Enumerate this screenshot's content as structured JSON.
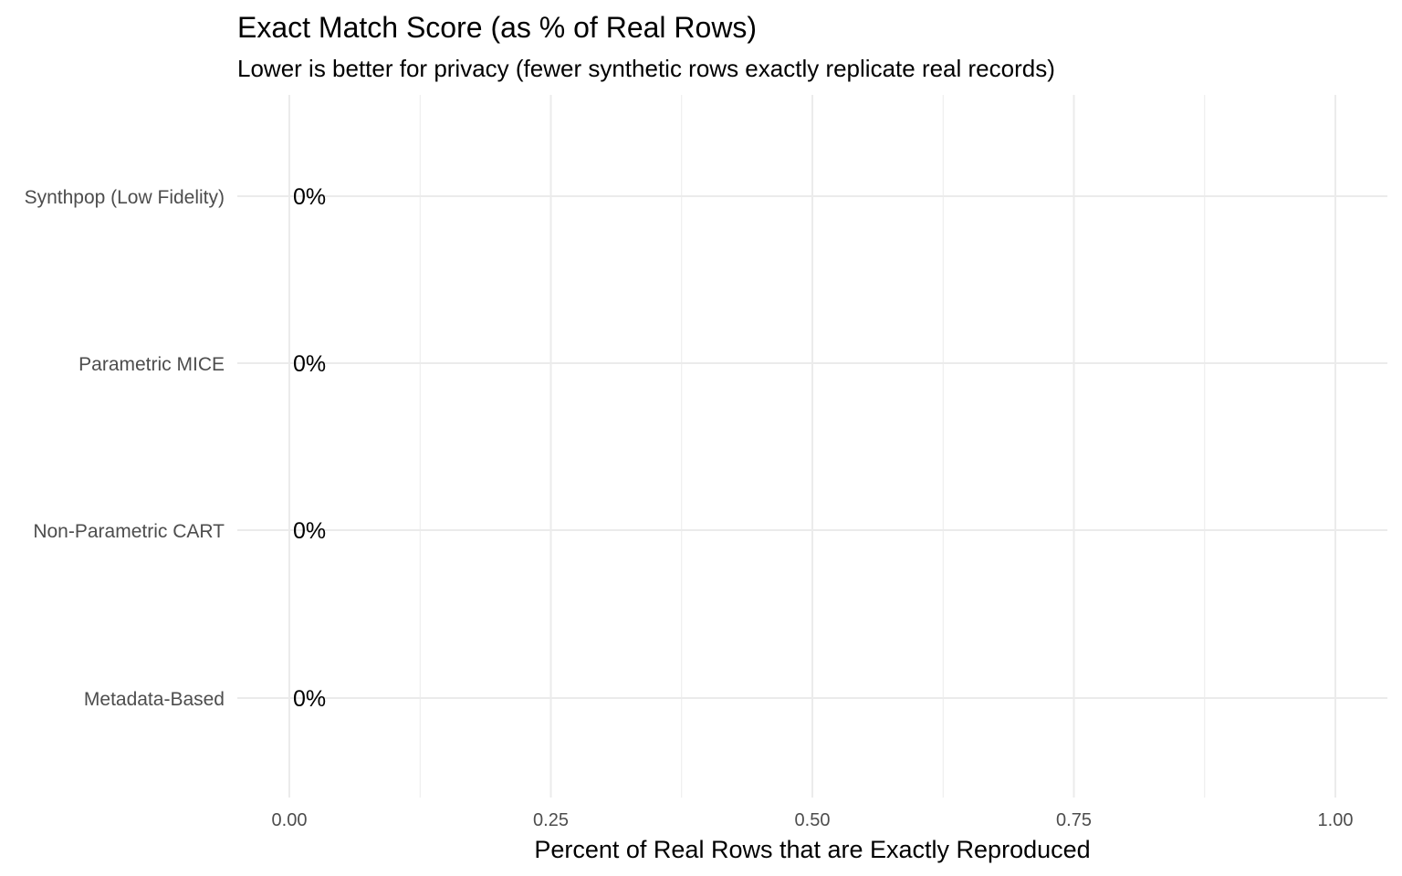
{
  "chart_data": {
    "type": "bar",
    "orientation": "horizontal",
    "title": "Exact Match Score (as % of Real Rows)",
    "subtitle": "Lower is better for privacy (fewer synthetic rows exactly replicate real records)",
    "xlabel": "Percent of Real Rows that are Exactly Reproduced",
    "ylabel": "",
    "categories": [
      "Synthpop (Low Fidelity)",
      "Parametric MICE",
      "Non-Parametric CART",
      "Metadata-Based"
    ],
    "values": [
      0,
      0,
      0,
      0
    ],
    "data_labels": [
      "0%",
      "0%",
      "0%",
      "0%"
    ],
    "xlim": [
      0,
      1
    ],
    "x_ticks": [
      0,
      0.25,
      0.5,
      0.75,
      1
    ],
    "x_tick_labels": [
      "0.00",
      "0.25",
      "0.50",
      "0.75",
      "1.00"
    ],
    "grid": true,
    "legend": "none"
  }
}
